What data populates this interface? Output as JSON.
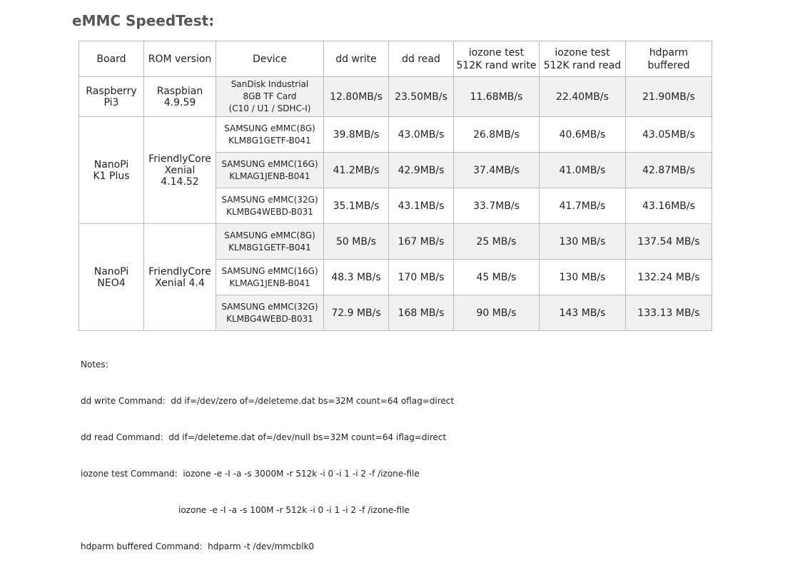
{
  "title": "eMMC SpeedTest:",
  "headers": [
    "Board",
    "ROM version",
    "Device",
    "dd write",
    "dd read",
    "iozone test\n512K rand write",
    "iozone test\n512K rand read",
    "hdparm buffered"
  ],
  "groups": [
    {
      "board": "Raspberry\nPi3",
      "rom": "Raspbian\n4.9.59",
      "rows": [
        {
          "device": "SanDisk Industrial\n8GB TF Card\n(C10 / U1 / SDHC-I)",
          "values": [
            "12.80MB/s",
            "23.50MB/s",
            "11.68MB/s",
            "22.40MB/s",
            "21.90MB/s"
          ]
        }
      ]
    },
    {
      "board": "NanoPi\nK1 Plus",
      "rom": "FriendlyCore\nXenial 4.14.52",
      "rows": [
        {
          "device": "SAMSUNG eMMC(8G)\nKLM8G1GETF-B041",
          "values": [
            "39.8MB/s",
            "43.0MB/s",
            "26.8MB/s",
            "40.6MB/s",
            "43.05MB/s"
          ]
        },
        {
          "device": "SAMSUNG eMMC(16G)\nKLMAG1JENB-B041",
          "values": [
            "41.2MB/s",
            "42.9MB/s",
            "37.4MB/s",
            "41.0MB/s",
            "42.87MB/s"
          ]
        },
        {
          "device": "SAMSUNG eMMC(32G)\nKLMBG4WEBD-B031",
          "values": [
            "35.1MB/s",
            "43.1MB/s",
            "33.7MB/s",
            "41.7MB/s",
            "43.16MB/s"
          ]
        }
      ]
    },
    {
      "board": "NanoPi\nNEO4",
      "rom": "FriendlyCore\nXenial 4.4",
      "rows": [
        {
          "device": "SAMSUNG eMMC(8G)\nKLM8G1GETF-B041",
          "values": [
            "50 MB/s",
            "167 MB/s",
            "25 MB/s",
            "130 MB/s",
            "137.54 MB/s"
          ]
        },
        {
          "device": "SAMSUNG eMMC(16G)\nKLMAG1JENB-B041",
          "values": [
            "48.3 MB/s",
            "170 MB/s",
            "45 MB/s",
            "130 MB/s",
            "132.24 MB/s"
          ]
        },
        {
          "device": "SAMSUNG eMMC(32G)\nKLMBG4WEBD-B031",
          "values": [
            "72.9 MB/s",
            "168 MB/s",
            "90 MB/s",
            "143 MB/s",
            "133.13 MB/s"
          ]
        }
      ]
    }
  ],
  "notes": {
    "heading": "Notes:",
    "dd_write": "dd write Command:  dd if=/dev/zero of=/deleteme.dat bs=32M count=64 oflag=direct",
    "dd_read": "dd read Command:  dd if=/deleteme.dat of=/dev/null bs=32M count=64 iflag=direct",
    "iozone_1": "iozone test Command:  iozone -e -I -a -s 3000M -r 512k -i 0 -i 1 -i 2 -f /izone-file",
    "iozone_2": "iozone -e -I -a -s 100M -r 512k -i 0 -i 1 -i 2 -f /izone-file",
    "hdparm": "hdparm buffered Command:  hdparm -t /dev/mmcblk0"
  }
}
